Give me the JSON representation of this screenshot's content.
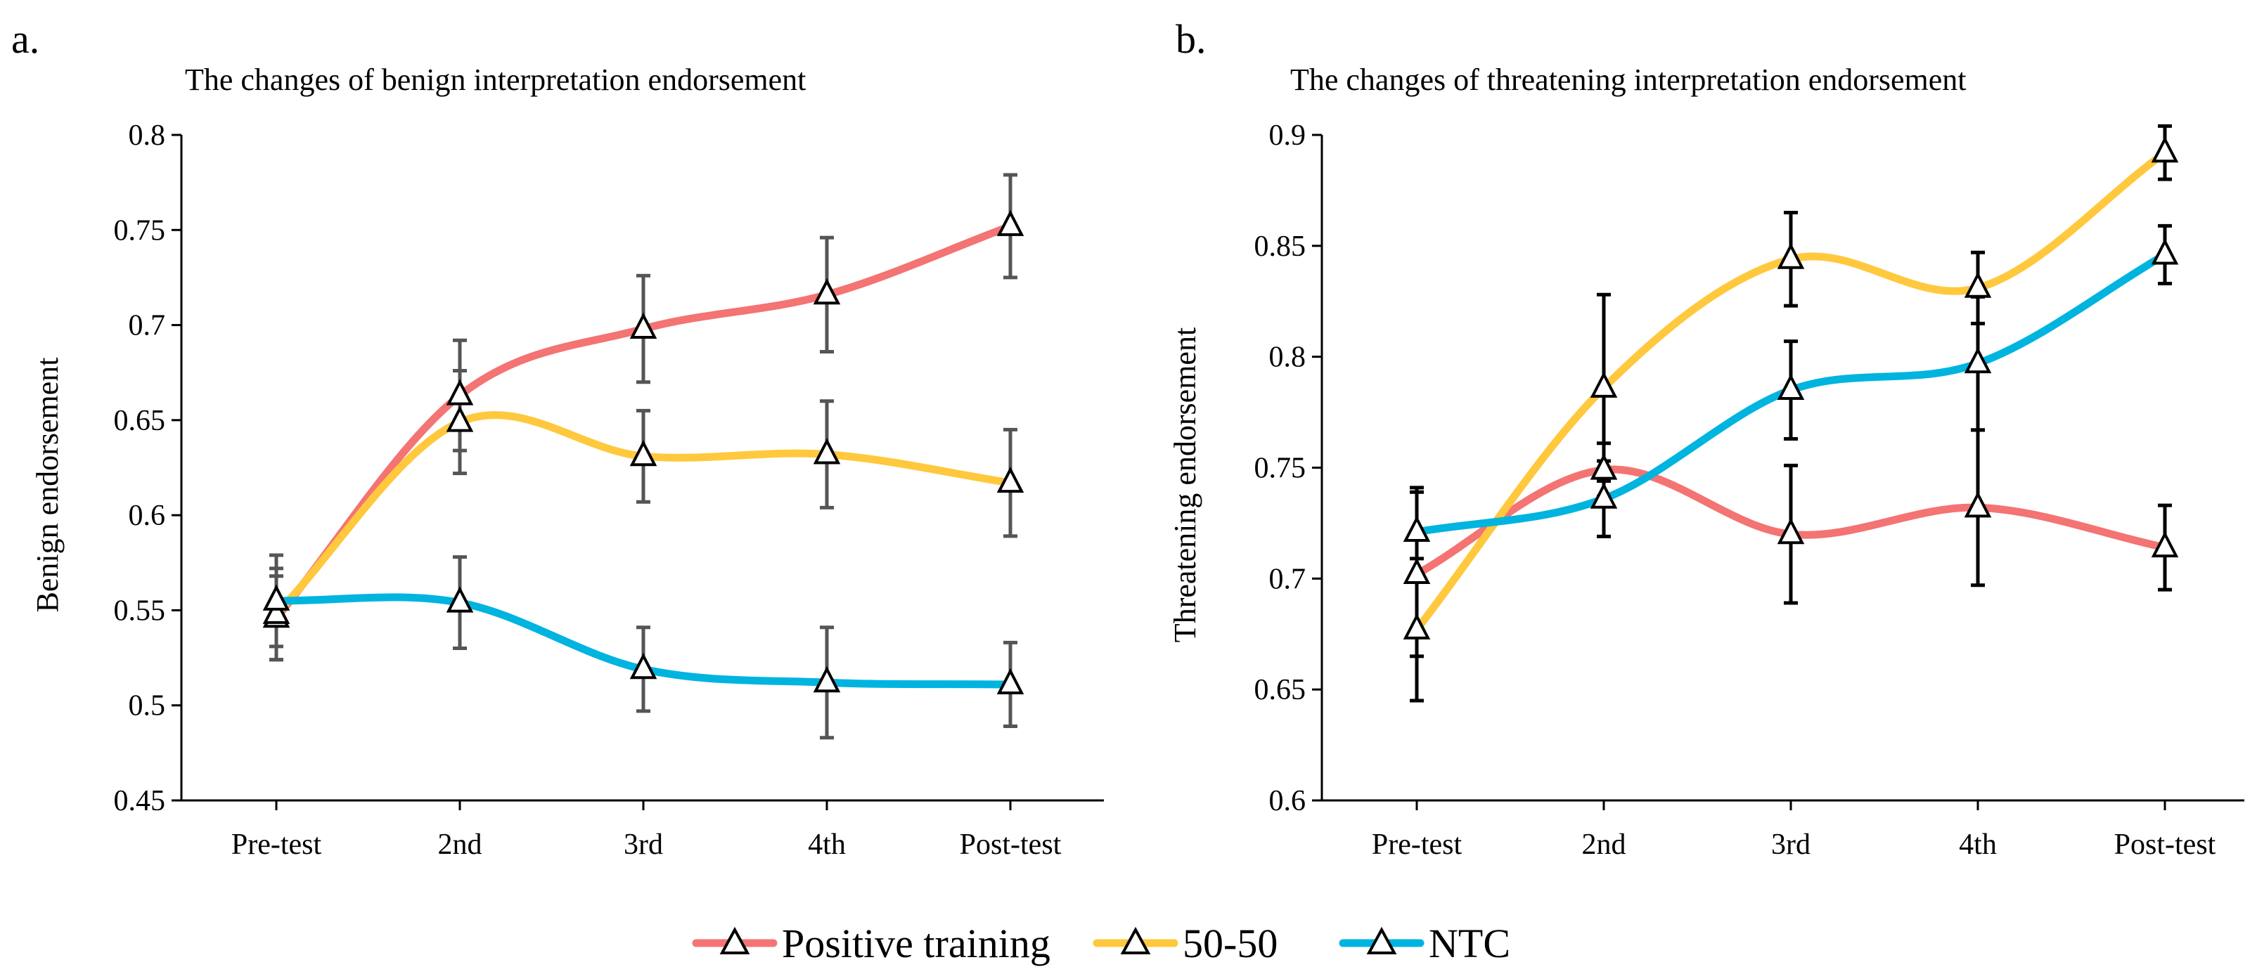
{
  "chart_data": [
    {
      "panel_label": "a.",
      "type": "line",
      "title": "The changes of benign interpretation endorsement",
      "xlabel": "",
      "ylabel": "Benign endorsement",
      "categories": [
        "Pre-test",
        "2nd",
        "3rd",
        "4th",
        "Post-test"
      ],
      "ylim": [
        0.45,
        0.8
      ],
      "yticks": [
        0.45,
        0.5,
        0.55,
        0.6,
        0.65,
        0.7,
        0.75,
        0.8
      ],
      "ytick_labels": [
        "0.45",
        "0.5",
        "0.55",
        "0.6",
        "0.65",
        "0.7",
        "0.75",
        "0.8"
      ],
      "grid": false,
      "errorbar_color": "#555555",
      "series": [
        {
          "name": "Positive training",
          "color": "#F47373",
          "values": [
            0.546,
            0.663,
            0.698,
            0.716,
            0.752
          ],
          "errors": [
            0.022,
            0.029,
            0.028,
            0.03,
            0.027
          ]
        },
        {
          "name": "50-50",
          "color": "#FFC83D",
          "values": [
            0.548,
            0.649,
            0.631,
            0.632,
            0.617
          ],
          "errors": [
            0.024,
            0.027,
            0.024,
            0.028,
            0.028
          ]
        },
        {
          "name": "NTC",
          "color": "#00B4E0",
          "values": [
            0.555,
            0.554,
            0.519,
            0.512,
            0.511
          ],
          "errors": [
            0.024,
            0.024,
            0.022,
            0.029,
            0.022
          ]
        }
      ]
    },
    {
      "panel_label": "b.",
      "type": "line",
      "title": "The changes of threatening interpretation endorsement",
      "xlabel": "",
      "ylabel": "Threatening endorsement",
      "categories": [
        "Pre-test",
        "2nd",
        "3rd",
        "4th",
        "Post-test"
      ],
      "ylim": [
        0.6,
        0.9
      ],
      "yticks": [
        0.6,
        0.65,
        0.7,
        0.75,
        0.8,
        0.85,
        0.9
      ],
      "ytick_labels": [
        "0.6",
        "0.65",
        "0.7",
        "0.75",
        "0.8",
        "0.85",
        "0.9"
      ],
      "grid": false,
      "errorbar_color": "#000000",
      "series": [
        {
          "name": "Positive training",
          "color": "#F47373",
          "values": [
            0.702,
            0.749,
            0.72,
            0.732,
            0.714
          ],
          "errors": [
            0.037,
            0.012,
            0.031,
            0.035,
            0.019
          ]
        },
        {
          "name": "50-50",
          "color": "#FFC83D",
          "values": [
            0.677,
            0.786,
            0.844,
            0.831,
            0.892
          ],
          "errors": [
            0.032,
            0.042,
            0.021,
            0.016,
            0.012
          ]
        },
        {
          "name": "NTC",
          "color": "#00B4E0",
          "values": [
            0.721,
            0.736,
            0.785,
            0.797,
            0.846
          ],
          "errors": [
            0.02,
            0.017,
            0.022,
            0.03,
            0.013
          ]
        }
      ]
    }
  ],
  "legend": {
    "position": "bottom-center",
    "items": [
      "Positive training",
      "50-50",
      "NTC"
    ]
  }
}
